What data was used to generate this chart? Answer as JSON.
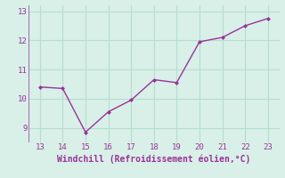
{
  "x": [
    13,
    14,
    15,
    16,
    17,
    18,
    19,
    20,
    21,
    22,
    23
  ],
  "y": [
    10.4,
    10.35,
    8.85,
    9.55,
    9.95,
    10.65,
    10.55,
    11.95,
    12.1,
    12.5,
    12.75
  ],
  "line_color": "#993399",
  "marker": "D",
  "marker_size": 2.0,
  "xlabel": "Windchill (Refroidissement éolien,°C)",
  "xlim": [
    12.5,
    23.5
  ],
  "ylim": [
    8.5,
    13.2
  ],
  "xticks": [
    13,
    14,
    15,
    16,
    17,
    18,
    19,
    20,
    21,
    22,
    23
  ],
  "yticks": [
    9,
    10,
    11,
    12,
    13
  ],
  "background_color": "#d8f0e8",
  "grid_color": "#b8ddd0",
  "tick_label_color": "#993399",
  "xlabel_color": "#993399",
  "tick_fontsize": 6.5,
  "xlabel_fontsize": 7,
  "linewidth": 1.0
}
